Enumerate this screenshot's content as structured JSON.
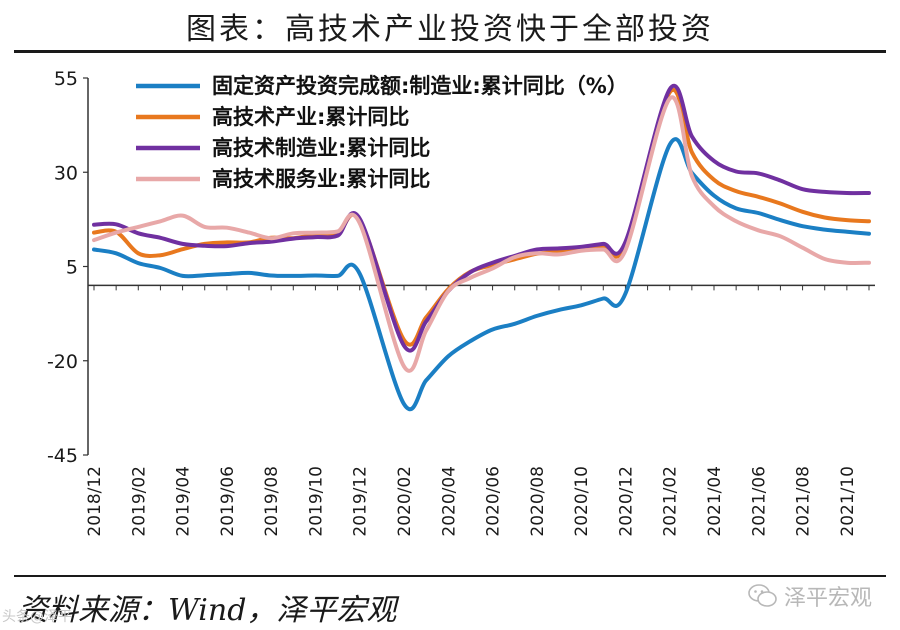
{
  "title": "图表：高技术产业投资快于全部投资",
  "source": "资料来源：Wind，泽平宏观",
  "watermark_right": "泽平宏观",
  "watermark_left": "头条@泽平",
  "icons": {
    "watermark": "wechat-icon"
  },
  "chart_data": {
    "type": "line",
    "x": [
      "2018/12",
      "2019/01",
      "2019/02",
      "2019/03",
      "2019/04",
      "2019/05",
      "2019/06",
      "2019/07",
      "2019/08",
      "2019/09",
      "2019/10",
      "2019/11",
      "2019/12",
      "2020/01",
      "2020/02",
      "2020/03",
      "2020/04",
      "2020/05",
      "2020/06",
      "2020/07",
      "2020/08",
      "2020/09",
      "2020/10",
      "2020/11",
      "2020/12",
      "2021/01",
      "2021/02",
      "2021/03",
      "2021/04",
      "2021/05",
      "2021/06",
      "2021/07",
      "2021/08",
      "2021/09",
      "2021/10",
      "2021/11"
    ],
    "xticks": [
      "2018/12",
      "2019/02",
      "2019/04",
      "2019/06",
      "2019/08",
      "2019/10",
      "2019/12",
      "2020/02",
      "2020/04",
      "2020/06",
      "2020/08",
      "2020/10",
      "2020/12",
      "2021/02",
      "2021/04",
      "2021/06",
      "2021/08",
      "2021/10"
    ],
    "ylim": [
      -45,
      55
    ],
    "yticks": [
      55,
      30,
      5,
      -20,
      -45
    ],
    "grid": false,
    "legend_position": "top",
    "series": [
      {
        "name": "固定资产投资完成额:制造业:累计同比（%）",
        "color": "#1b7fc4",
        "values": [
          9.5,
          8.5,
          5.9,
          4.6,
          2.5,
          2.7,
          3.0,
          3.3,
          2.6,
          2.5,
          2.6,
          2.5,
          3.1,
          null,
          -31.5,
          -25.2,
          -18.8,
          -14.8,
          -11.7,
          -10.2,
          -8.1,
          -6.5,
          -5.3,
          -3.5,
          -2.2,
          null,
          37.3,
          29.8,
          23.8,
          20.4,
          19.2,
          17.3,
          15.7,
          14.8,
          14.2,
          13.7
        ]
      },
      {
        "name": "高技术产业:累计同比",
        "color": "#e8781e",
        "values": [
          14.0,
          14.2,
          8.5,
          8.0,
          9.6,
          11.0,
          11.4,
          11.4,
          12.6,
          12.5,
          13.4,
          13.6,
          17.3,
          null,
          -14.5,
          -8.5,
          -1.0,
          3.6,
          5.4,
          6.9,
          8.4,
          9.0,
          9.5,
          10.5,
          10.6,
          null,
          51.2,
          35.3,
          28.0,
          25.0,
          23.5,
          21.7,
          19.5,
          18.0,
          17.3,
          17.0
        ]
      },
      {
        "name": "高技术制造业:累计同比",
        "color": "#7030a0",
        "values": [
          16.1,
          16.2,
          13.8,
          12.6,
          11.0,
          10.5,
          10.4,
          11.2,
          11.6,
          12.4,
          12.8,
          13.2,
          17.7,
          null,
          -16.0,
          -9.6,
          -1.5,
          3.5,
          6.0,
          7.8,
          9.5,
          9.8,
          10.2,
          11.0,
          11.5,
          null,
          52.0,
          39.5,
          33.0,
          30.2,
          29.7,
          27.8,
          25.5,
          24.8,
          24.5,
          24.5
        ]
      },
      {
        "name": "高技术服务业:累计同比",
        "color": "#e8a8a8",
        "values": [
          12.0,
          14.0,
          15.5,
          17.0,
          18.5,
          15.5,
          15.3,
          14.0,
          12.5,
          13.8,
          14.0,
          14.3,
          16.5,
          null,
          -21.5,
          -12.0,
          -1.5,
          2.0,
          4.5,
          7.5,
          8.5,
          8.2,
          9.2,
          9.5,
          9.3,
          null,
          49.5,
          29.0,
          21.0,
          17.0,
          14.6,
          13.0,
          10.0,
          7.0,
          6.0,
          6.0
        ]
      }
    ]
  }
}
